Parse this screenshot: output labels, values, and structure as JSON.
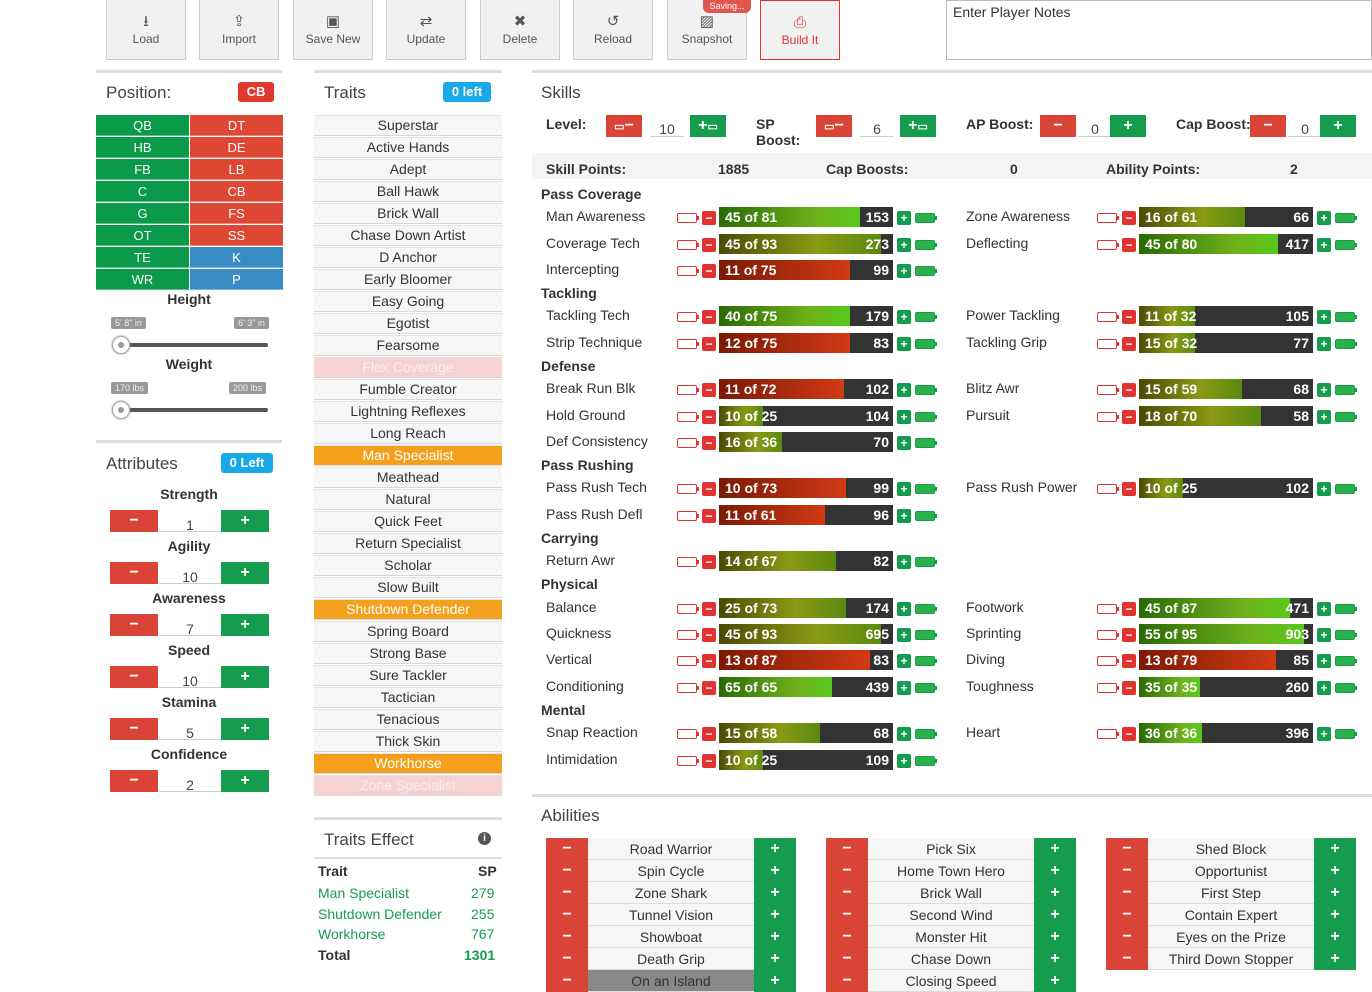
{
  "toolbar": {
    "load": "Load",
    "import": "Import",
    "save_new": "Save New",
    "update": "Update",
    "delete": "Delete",
    "reload": "Reload",
    "snapshot": "Snapshot",
    "saving": "Saving...",
    "build": "Build It",
    "notes_placeholder": "Enter Player Notes"
  },
  "position": {
    "title": "Position:",
    "badge": "CB",
    "left": [
      "QB",
      "HB",
      "FB",
      "C",
      "G",
      "OT",
      "TE",
      "WR"
    ],
    "right": [
      "DT",
      "DE",
      "LB",
      "CB",
      "FS",
      "SS",
      "K",
      "P"
    ]
  },
  "height": {
    "label": "Height",
    "min": "5' 8\" in",
    "max": "6' 3\" in"
  },
  "weight": {
    "label": "Weight",
    "min": "170 lbs",
    "max": "200 lbs"
  },
  "attributes": {
    "title": "Attributes",
    "badge": "0 Left",
    "items": [
      {
        "name": "Strength",
        "value": "1"
      },
      {
        "name": "Agility",
        "value": "10"
      },
      {
        "name": "Awareness",
        "value": "7"
      },
      {
        "name": "Speed",
        "value": "10"
      },
      {
        "name": "Stamina",
        "value": "5"
      },
      {
        "name": "Confidence",
        "value": "2"
      }
    ]
  },
  "traits": {
    "title": "Traits",
    "badge": "0 left",
    "items": [
      "Superstar",
      "Active Hands",
      "Adept",
      "Ball Hawk",
      "Brick Wall",
      "Chase Down Artist",
      "D Anchor",
      "Early Bloomer",
      "Easy Going",
      "Egotist",
      "Fearsome",
      "Flex Coverage",
      "Fumble Creator",
      "Lightning Reflexes",
      "Long Reach",
      "Man Specialist",
      "Meathead",
      "Natural",
      "Quick Feet",
      "Return Specialist",
      "Scholar",
      "Slow Built",
      "Shutdown Defender",
      "Spring Board",
      "Strong Base",
      "Sure Tackler",
      "Tactician",
      "Tenacious",
      "Thick Skin",
      "Workhorse",
      "Zone Specialist"
    ]
  },
  "traits_effect": {
    "title": "Traits Effect",
    "col_trait": "Trait",
    "col_sp": "SP",
    "rows": [
      {
        "trait": "Man Specialist",
        "sp": "279"
      },
      {
        "trait": "Shutdown Defender",
        "sp": "255"
      },
      {
        "trait": "Workhorse",
        "sp": "767"
      }
    ],
    "total_label": "Total",
    "total": "1301"
  },
  "skills": {
    "title": "Skills",
    "level_label": "Level:",
    "level": "10",
    "sp_label": "SP",
    "sp_label2": "Boost:",
    "sp": "6",
    "ap_label": "AP Boost:",
    "ap": "0",
    "cap_label": "Cap Boost:",
    "cap": "0",
    "skill_points_label": "Skill Points:",
    "skill_points": "1885",
    "cap_boosts_label": "Cap Boosts:",
    "cap_boosts": "0",
    "ability_points_label": "Ability Points:",
    "ability_points": "2",
    "categories": {
      "pass_coverage": "Pass Coverage",
      "tackling": "Tackling",
      "defense": "Defense",
      "pass_rushing": "Pass Rushing",
      "carrying": "Carrying",
      "physical": "Physical",
      "mental": "Mental"
    },
    "rows": [
      {
        "name": "Man Awareness",
        "cur": 45,
        "max": 81,
        "pts": "153"
      },
      {
        "name": "Zone Awareness",
        "cur": 16,
        "max": 61,
        "pts": "66"
      },
      {
        "name": "Coverage Tech",
        "cur": 45,
        "max": 93,
        "pts": "273"
      },
      {
        "name": "Deflecting",
        "cur": 45,
        "max": 80,
        "pts": "417"
      },
      {
        "name": "Intercepting",
        "cur": 11,
        "max": 75,
        "pts": "99"
      },
      {
        "name": "Tackling Tech",
        "cur": 40,
        "max": 75,
        "pts": "179"
      },
      {
        "name": "Power Tackling",
        "cur": 11,
        "max": 32,
        "pts": "105"
      },
      {
        "name": "Strip Technique",
        "cur": 12,
        "max": 75,
        "pts": "83"
      },
      {
        "name": "Tackling Grip",
        "cur": 15,
        "max": 32,
        "pts": "77"
      },
      {
        "name": "Break Run Blk",
        "cur": 11,
        "max": 72,
        "pts": "102"
      },
      {
        "name": "Blitz Awr",
        "cur": 15,
        "max": 59,
        "pts": "68"
      },
      {
        "name": "Hold Ground",
        "cur": 10,
        "max": 25,
        "pts": "104"
      },
      {
        "name": "Pursuit",
        "cur": 18,
        "max": 70,
        "pts": "58"
      },
      {
        "name": "Def Consistency",
        "cur": 16,
        "max": 36,
        "pts": "70"
      },
      {
        "name": "Pass Rush Tech",
        "cur": 10,
        "max": 73,
        "pts": "99"
      },
      {
        "name": "Pass Rush Power",
        "cur": 10,
        "max": 25,
        "pts": "102"
      },
      {
        "name": "Pass Rush Defl",
        "cur": 11,
        "max": 61,
        "pts": "96"
      },
      {
        "name": "Return Awr",
        "cur": 14,
        "max": 67,
        "pts": "82"
      },
      {
        "name": "Balance",
        "cur": 25,
        "max": 73,
        "pts": "174"
      },
      {
        "name": "Footwork",
        "cur": 45,
        "max": 87,
        "pts": "471"
      },
      {
        "name": "Quickness",
        "cur": 45,
        "max": 93,
        "pts": "695"
      },
      {
        "name": "Sprinting",
        "cur": 55,
        "max": 95,
        "pts": "903"
      },
      {
        "name": "Vertical",
        "cur": 13,
        "max": 87,
        "pts": "83"
      },
      {
        "name": "Diving",
        "cur": 13,
        "max": 79,
        "pts": "85"
      },
      {
        "name": "Conditioning",
        "cur": 65,
        "max": 65,
        "pts": "439"
      },
      {
        "name": "Toughness",
        "cur": 35,
        "max": 35,
        "pts": "260"
      },
      {
        "name": "Snap Reaction",
        "cur": 15,
        "max": 58,
        "pts": "68"
      },
      {
        "name": "Heart",
        "cur": 36,
        "max": 36,
        "pts": "396"
      },
      {
        "name": "Intimidation",
        "cur": 10,
        "max": 25,
        "pts": "109"
      }
    ]
  },
  "abilities": {
    "title": "Abilities",
    "col1": [
      "Road Warrior",
      "Spin Cycle",
      "Zone Shark",
      "Tunnel Vision",
      "Showboat",
      "Death Grip",
      "On an Island"
    ],
    "col2": [
      "Pick Six",
      "Home Town Hero",
      "Brick Wall",
      "Second Wind",
      "Monster Hit",
      "Chase Down",
      "Closing Speed"
    ],
    "col3": [
      "Shed Block",
      "Opportunist",
      "First Step",
      "Contain Expert",
      "Eyes on the Prize",
      "Third Down Stopper"
    ]
  },
  "colors": {
    "green": "#169c4f",
    "red": "#d94437",
    "orange": "#f4a01c",
    "blue": "#3a8cc4",
    "cyan": "#1aa9e8"
  }
}
